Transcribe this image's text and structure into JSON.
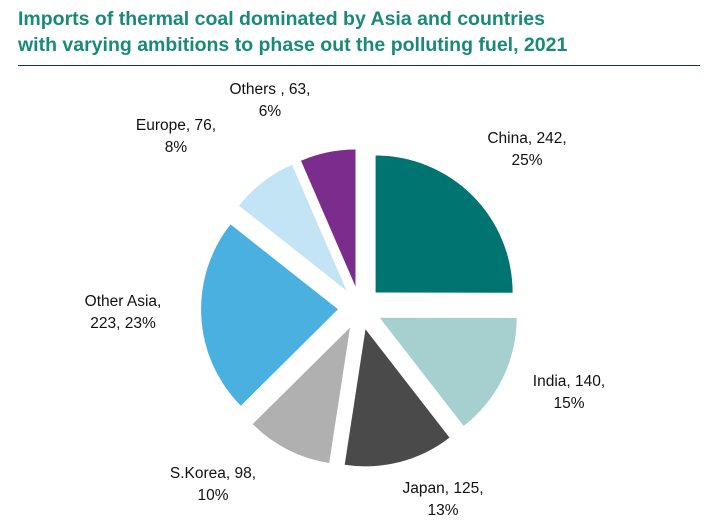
{
  "title_line1": "Imports of thermal coal dominated by Asia and countries",
  "title_line2": "with varying ambitions to phase out the polluting fuel, 2021",
  "chart_data": {
    "type": "pie",
    "title": "Imports of thermal coal dominated by Asia and countries with varying ambitions to phase out the polluting fuel, 2021",
    "exploded": true,
    "slices": [
      {
        "name": "China",
        "value": 242,
        "percent": "25%",
        "color": "#007470",
        "label": [
          "China, 242,",
          "25%"
        ]
      },
      {
        "name": "India",
        "value": 140,
        "percent": "15%",
        "color": "#a6cfcf",
        "label": [
          "India, 140,",
          "15%"
        ]
      },
      {
        "name": "Japan",
        "value": 125,
        "percent": "13%",
        "color": "#4a4a4a",
        "label": [
          "Japan, 125,",
          "13%"
        ]
      },
      {
        "name": "S.Korea",
        "value": 98,
        "percent": "10%",
        "color": "#b0b0b0",
        "label": [
          "S.Korea, 98,",
          "10%"
        ]
      },
      {
        "name": "Other Asia",
        "value": 223,
        "percent": "23%",
        "color": "#4ab0e0",
        "label": [
          "Other Asia,",
          "223, 23%"
        ]
      },
      {
        "name": "Europe",
        "value": 76,
        "percent": "8%",
        "color": "#c2e4f4",
        "label": [
          "Europe, 76,",
          "8%"
        ]
      },
      {
        "name": "Others",
        "value": 63,
        "percent": "6%",
        "color": "#7b2d8e",
        "label": [
          "Others , 63,",
          "6%"
        ]
      }
    ]
  }
}
